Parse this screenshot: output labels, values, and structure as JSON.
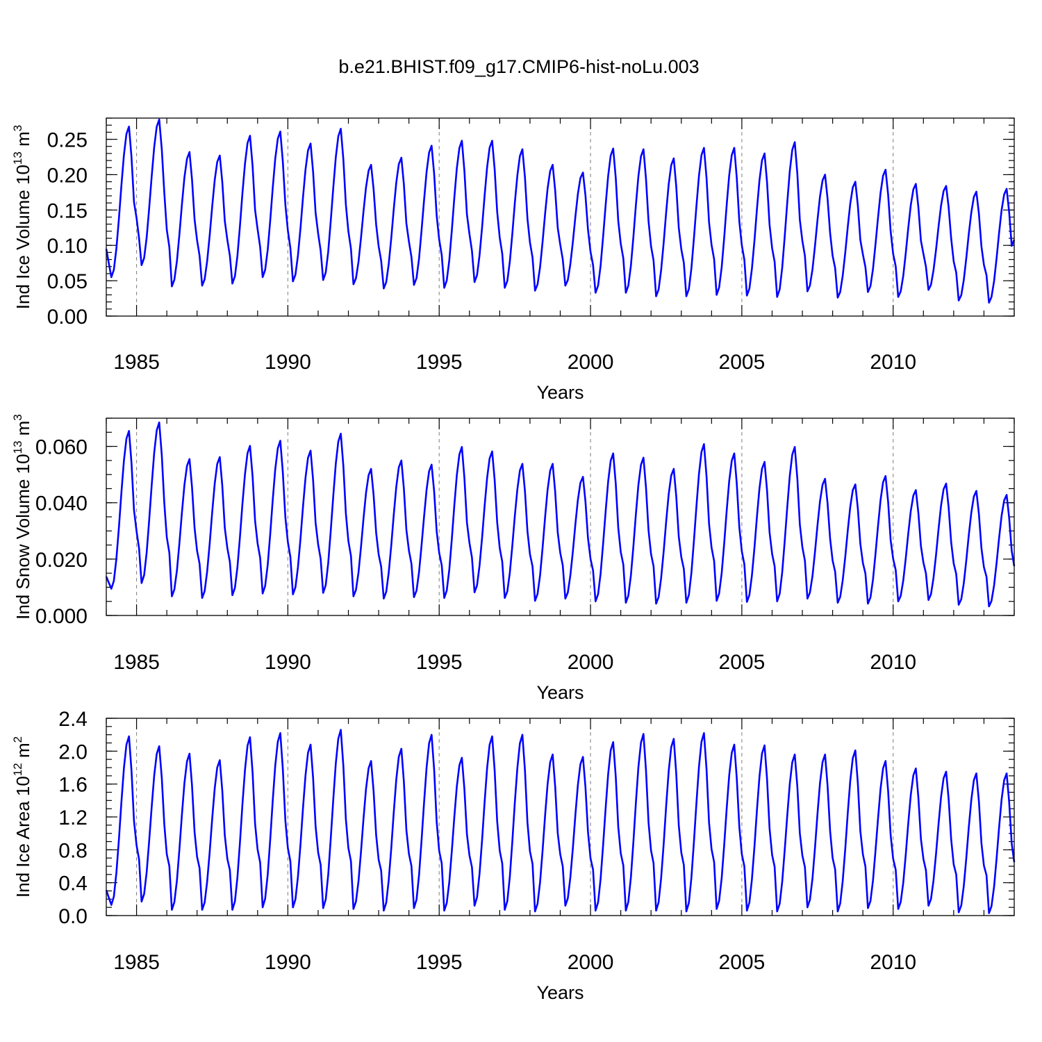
{
  "figure_title": "b.e21.BHIST.f09_g17.CMIP6-hist-noLu.003",
  "colors": {
    "series": "#0000ff",
    "axes": "#000000",
    "grid": "#888888"
  },
  "chart_data": [
    {
      "type": "line",
      "ylabel_main": "Ind Ice Volume 10",
      "ylabel_exp": "13",
      "ylabel_unit": " m",
      "ylabel_unit_exp": "3",
      "xlabel": "Years",
      "xlim": [
        1984.0,
        2014.0
      ],
      "ylim": [
        0.0,
        0.28
      ],
      "x_major_ticks": [
        1985,
        1990,
        1995,
        2000,
        2005,
        2010
      ],
      "x_tick_labels": [
        "1985",
        "1990",
        "1995",
        "2000",
        "2005",
        "2010"
      ],
      "y_ticks": [
        0.0,
        0.05,
        0.1,
        0.15,
        0.2,
        0.25
      ],
      "y_tick_labels": [
        "0.00",
        "0.05",
        "0.10",
        "0.15",
        "0.20",
        "0.25"
      ],
      "y_minor_step": 0.01,
      "series": [
        {
          "name": "Ind Ice Volume",
          "start_year": 1984.0,
          "step": 0.083333,
          "annual_peaks": [
            0.268,
            0.278,
            0.232,
            0.227,
            0.255,
            0.261,
            0.244,
            0.265,
            0.214,
            0.224,
            0.241,
            0.248,
            0.248,
            0.236,
            0.214,
            0.203,
            0.237,
            0.236,
            0.223,
            0.238,
            0.238,
            0.23,
            0.246,
            0.2,
            0.19,
            0.207,
            0.187,
            0.184,
            0.176,
            0.18
          ],
          "annual_mins": [
            0.055,
            0.072,
            0.042,
            0.043,
            0.046,
            0.055,
            0.049,
            0.051,
            0.045,
            0.039,
            0.044,
            0.04,
            0.048,
            0.04,
            0.036,
            0.043,
            0.033,
            0.033,
            0.028,
            0.028,
            0.03,
            0.029,
            0.027,
            0.035,
            0.026,
            0.034,
            0.027,
            0.037,
            0.022,
            0.019
          ],
          "first_value": 0.095,
          "last_value": 0.108
        }
      ]
    },
    {
      "type": "line",
      "ylabel_main": "Ind Snow Volume 10",
      "ylabel_exp": "13",
      "ylabel_unit": " m",
      "ylabel_unit_exp": "3",
      "xlabel": "Years",
      "xlim": [
        1984.0,
        2014.0
      ],
      "ylim": [
        0.0,
        0.07
      ],
      "x_major_ticks": [
        1985,
        1990,
        1995,
        2000,
        2005,
        2010
      ],
      "x_tick_labels": [
        "1985",
        "1990",
        "1995",
        "2000",
        "2005",
        "2010"
      ],
      "y_ticks": [
        0.0,
        0.02,
        0.04,
        0.06
      ],
      "y_tick_labels": [
        "0.000",
        "0.020",
        "0.040",
        "0.060"
      ],
      "y_minor_step": 0.005,
      "series": [
        {
          "name": "Ind Snow Volume",
          "start_year": 1984.0,
          "step": 0.083333,
          "annual_peaks": [
            0.0655,
            0.0685,
            0.0555,
            0.0562,
            0.0602,
            0.062,
            0.0585,
            0.0645,
            0.052,
            0.055,
            0.0535,
            0.0598,
            0.0582,
            0.0538,
            0.0538,
            0.0492,
            0.0575,
            0.056,
            0.052,
            0.0608,
            0.0575,
            0.0545,
            0.0598,
            0.0485,
            0.0465,
            0.0495,
            0.0445,
            0.0468,
            0.0442,
            0.0428
          ],
          "annual_mins": [
            0.0095,
            0.0115,
            0.0068,
            0.0062,
            0.0072,
            0.0078,
            0.0075,
            0.008,
            0.0068,
            0.006,
            0.0065,
            0.0062,
            0.0082,
            0.0062,
            0.0052,
            0.006,
            0.005,
            0.0045,
            0.0042,
            0.0045,
            0.0052,
            0.0048,
            0.005,
            0.006,
            0.0045,
            0.0042,
            0.005,
            0.0055,
            0.0038,
            0.0032
          ],
          "first_value": 0.0138,
          "last_value": 0.0175
        }
      ]
    },
    {
      "type": "line",
      "ylabel_main": "Ind Ice Area 10",
      "ylabel_exp": "12",
      "ylabel_unit": " m",
      "ylabel_unit_exp": "2",
      "xlabel": "Years",
      "xlim": [
        1984.0,
        2014.0
      ],
      "ylim": [
        0.0,
        2.4
      ],
      "x_major_ticks": [
        1985,
        1990,
        1995,
        2000,
        2005,
        2010
      ],
      "x_tick_labels": [
        "1985",
        "1990",
        "1995",
        "2000",
        "2005",
        "2010"
      ],
      "y_ticks": [
        0.0,
        0.4,
        0.8,
        1.2,
        1.6,
        2.0,
        2.4
      ],
      "y_tick_labels": [
        "0.0",
        "0.4",
        "0.8",
        "1.2",
        "1.6",
        "2.0",
        "2.4"
      ],
      "y_minor_step": 0.1,
      "series": [
        {
          "name": "Ind Ice Area",
          "start_year": 1984.0,
          "step": 0.083333,
          "annual_peaks": [
            2.18,
            2.06,
            1.97,
            1.89,
            2.17,
            2.22,
            2.08,
            2.26,
            1.88,
            2.03,
            2.2,
            1.92,
            2.18,
            2.2,
            1.96,
            1.93,
            2.11,
            2.21,
            2.15,
            2.22,
            2.08,
            2.07,
            1.96,
            1.96,
            2.01,
            1.88,
            1.79,
            1.75,
            1.73,
            1.73
          ],
          "annual_mins": [
            0.13,
            0.17,
            0.07,
            0.07,
            0.07,
            0.1,
            0.1,
            0.09,
            0.08,
            0.06,
            0.09,
            0.06,
            0.12,
            0.07,
            0.05,
            0.12,
            0.06,
            0.06,
            0.06,
            0.05,
            0.08,
            0.06,
            0.05,
            0.1,
            0.05,
            0.09,
            0.08,
            0.12,
            0.04,
            0.03
          ],
          "first_value": 0.31,
          "last_value": 0.65
        }
      ]
    }
  ]
}
